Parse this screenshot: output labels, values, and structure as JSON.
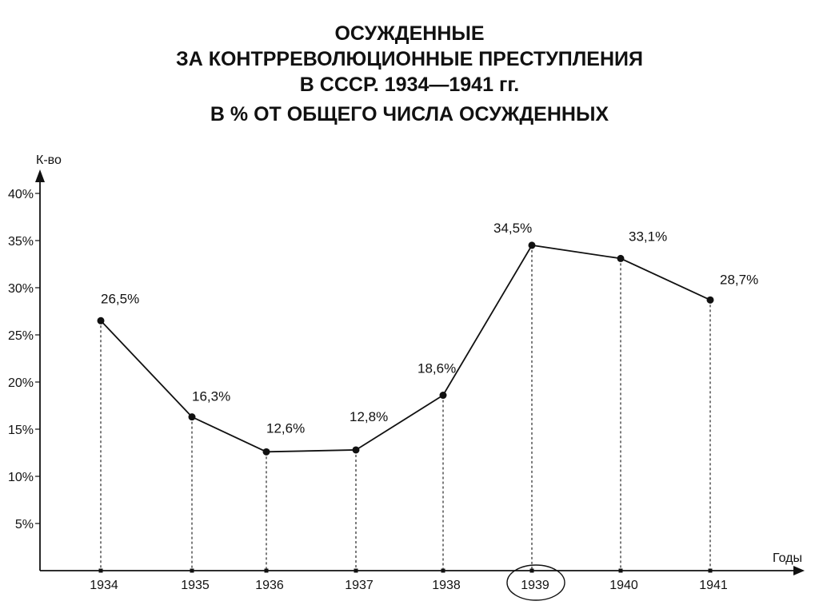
{
  "chart_data": {
    "type": "line",
    "title_lines": [
      "ОСУЖДЕННЫЕ",
      "ЗА КОНТРРЕВОЛЮЦИОННЫЕ ПРЕСТУПЛЕНИЯ",
      "В СССР. 1934—1941 гг.",
      "В % ОТ ОБЩЕГО ЧИСЛА ОСУЖДЕННЫХ"
    ],
    "ylabel": "К-во",
    "xlabel": "Годы",
    "categories": [
      "1934",
      "1935",
      "1936",
      "1937",
      "1938",
      "1939",
      "1940",
      "1941"
    ],
    "series": [
      {
        "values": [
          26.5,
          16.3,
          12.6,
          12.8,
          18.6,
          34.5,
          33.1,
          28.7
        ],
        "labels": [
          "26,5%",
          "16,3%",
          "12,6%",
          "12,8%",
          "18,6%",
          "34,5%",
          "33,1%",
          "28,7%"
        ]
      }
    ],
    "yticks": [
      "5%",
      "10%",
      "15%",
      "20%",
      "25%",
      "30%",
      "35%",
      "40%"
    ],
    "ytick_values": [
      5,
      10,
      15,
      20,
      25,
      30,
      35,
      40
    ],
    "ylim": [
      0,
      40
    ],
    "highlighted_category": "1939",
    "grid": false,
    "drop_lines": "dashed",
    "line_color": "#111111"
  }
}
